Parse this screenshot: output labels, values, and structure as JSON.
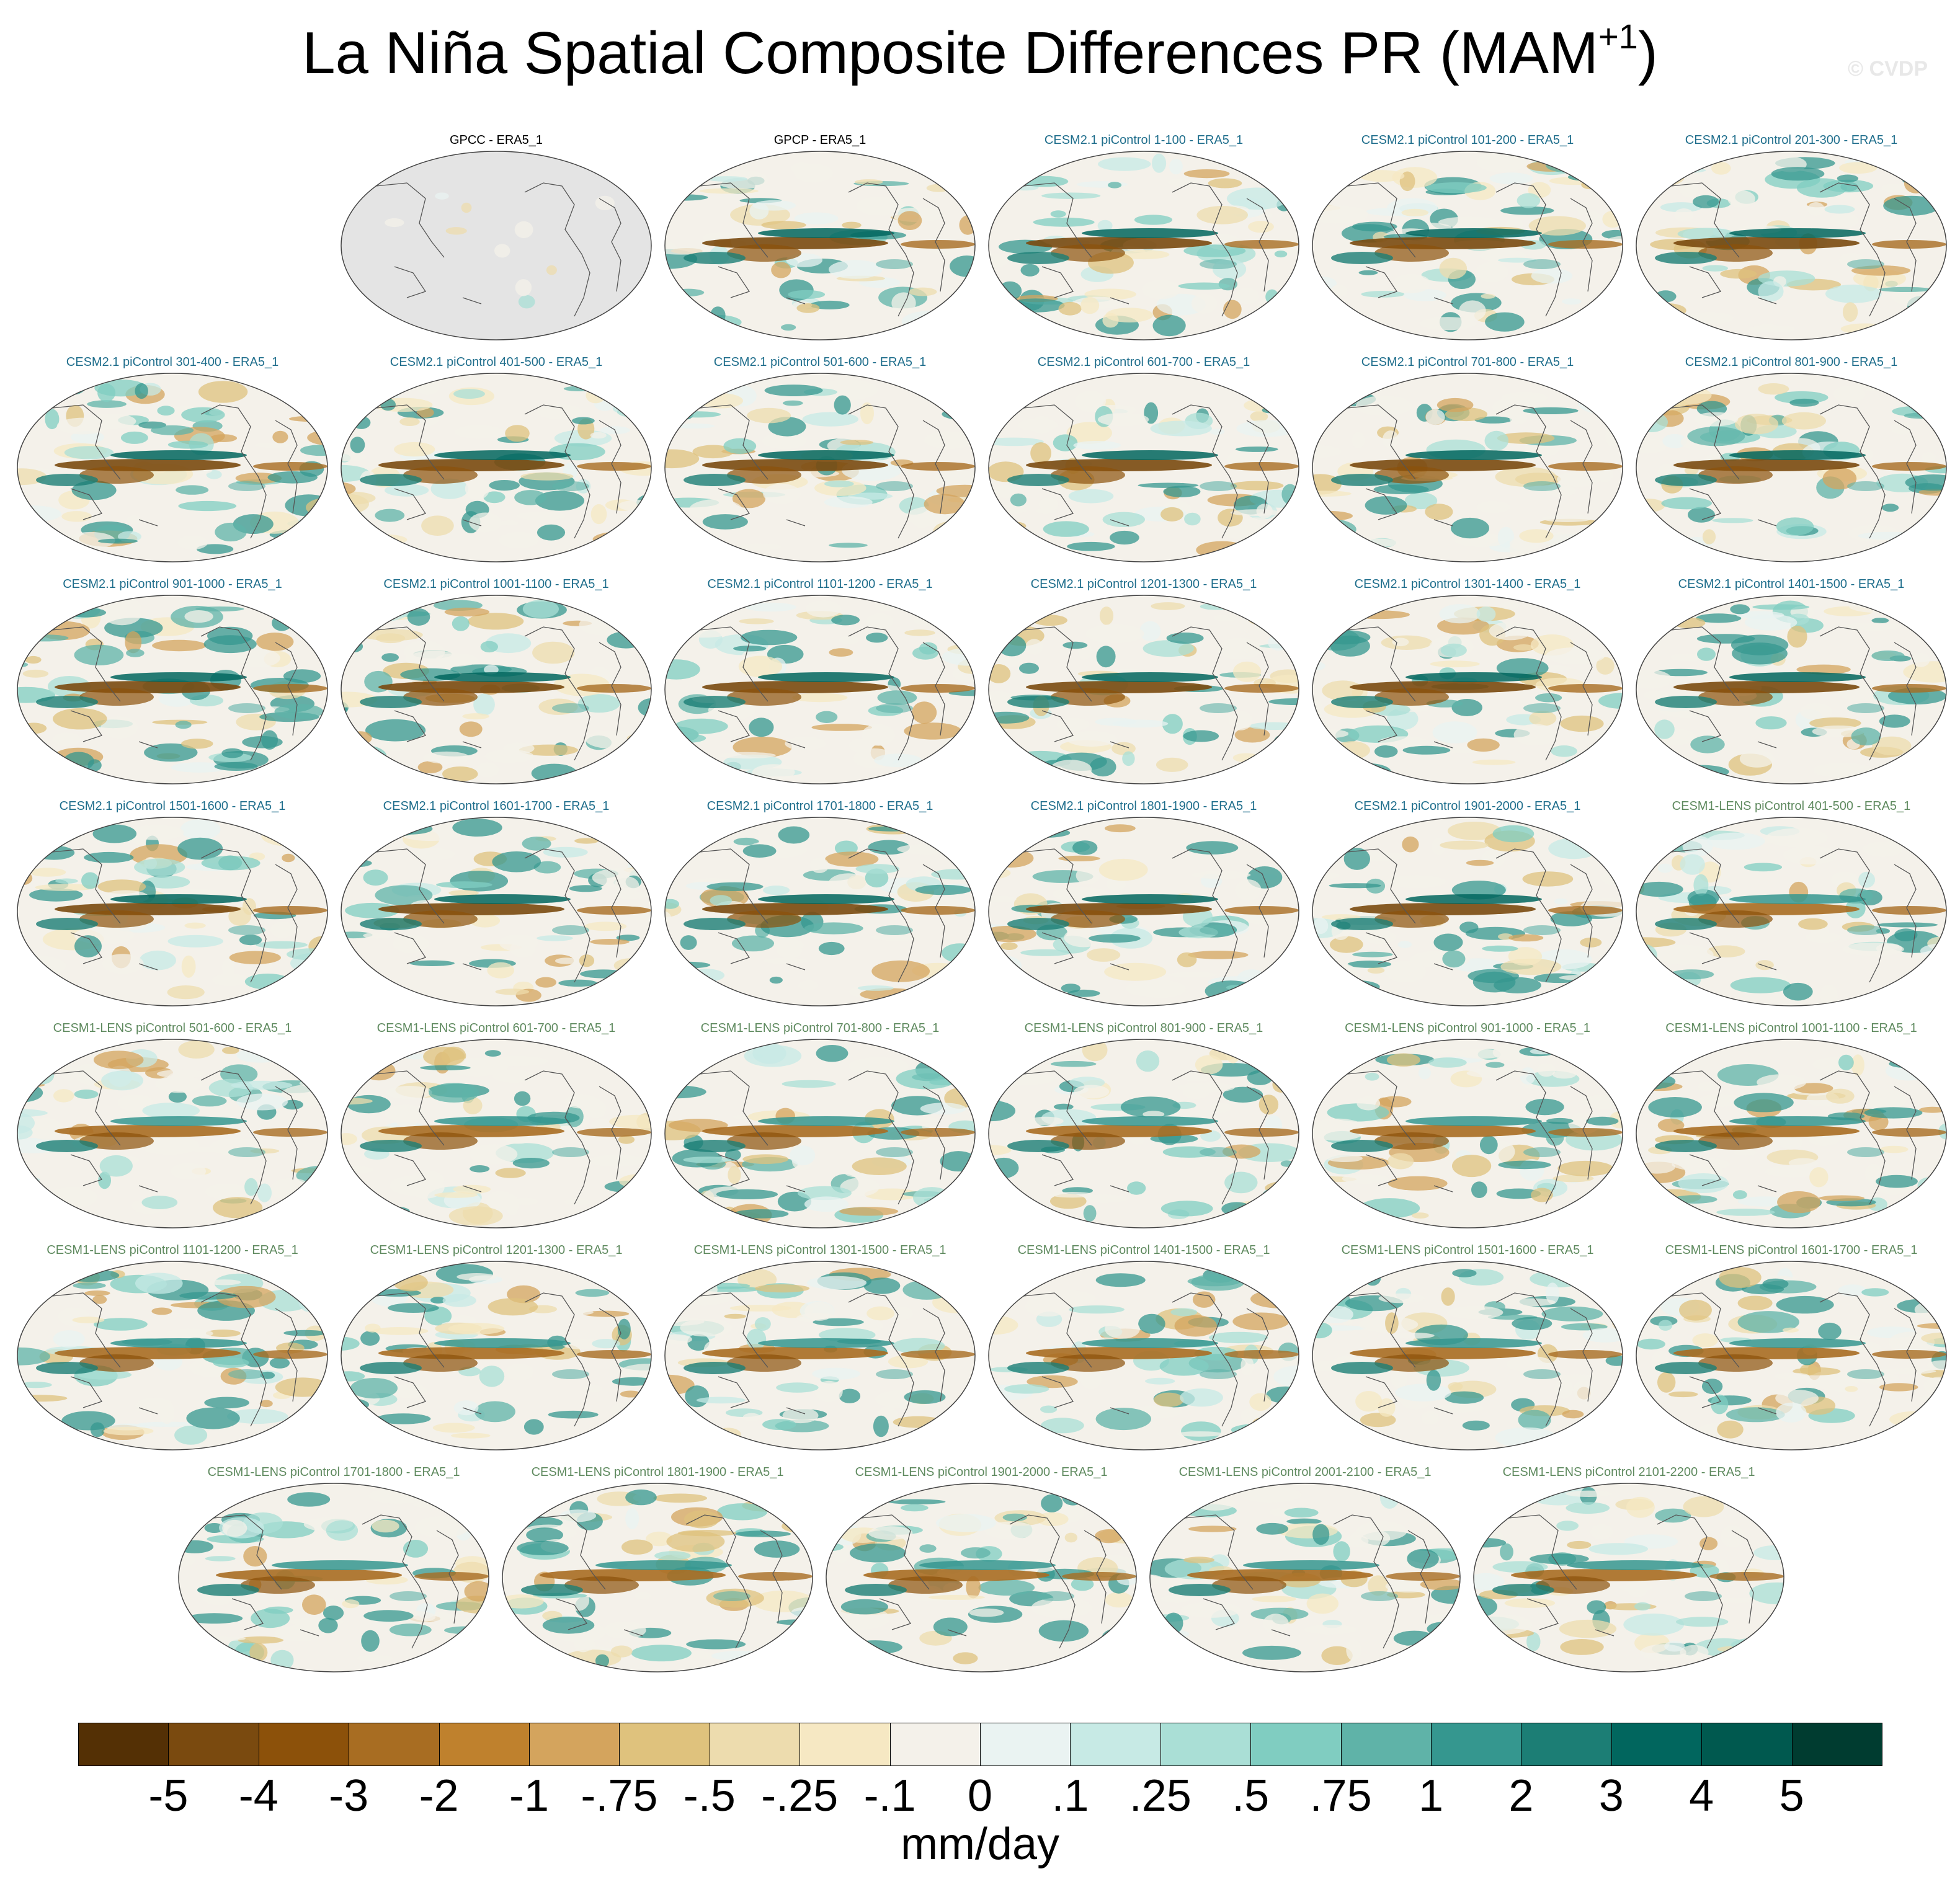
{
  "chart_data": {
    "type": "heatmap",
    "title": "La Niña Spatial Composite Differences PR (MAM",
    "title_superscript": "+1",
    "title_close": ")",
    "watermark": "© CVDP",
    "projection": "global map (Robinson-like)",
    "units": "mm/day",
    "colorbar": {
      "levels": [
        "-5",
        "-4",
        "-3",
        "-2",
        "-1",
        "-.75",
        "-.5",
        "-.25",
        "-.1",
        "0",
        ".1",
        ".25",
        ".5",
        ".75",
        "1",
        "2",
        "3",
        "4",
        "5"
      ],
      "colors": [
        "#543005",
        "#7a4a0f",
        "#8c510a",
        "#a86d22",
        "#bf812d",
        "#d4a45d",
        "#dfc27d",
        "#eddcae",
        "#f6e8c3",
        "#f4f1ea",
        "#eaf3f2",
        "#c7eae5",
        "#aadfd6",
        "#80cdc1",
        "#5fb3a8",
        "#35978f",
        "#1c7e75",
        "#01665e",
        "#00594f",
        "#003c30"
      ]
    },
    "panels": [
      {
        "row": 0,
        "col": 1,
        "title": "GPCC - ERA5_1",
        "group": "obs"
      },
      {
        "row": 0,
        "col": 2,
        "title": "GPCP - ERA5_1",
        "group": "obs"
      },
      {
        "row": 0,
        "col": 3,
        "title": "CESM2.1 piControl 1-100 - ERA5_1",
        "group": "cesm2"
      },
      {
        "row": 0,
        "col": 4,
        "title": "CESM2.1 piControl 101-200 - ERA5_1",
        "group": "cesm2"
      },
      {
        "row": 0,
        "col": 5,
        "title": "CESM2.1 piControl 201-300 - ERA5_1",
        "group": "cesm2"
      },
      {
        "row": 1,
        "col": 0,
        "title": "CESM2.1 piControl 301-400 - ERA5_1",
        "group": "cesm2"
      },
      {
        "row": 1,
        "col": 1,
        "title": "CESM2.1 piControl 401-500 - ERA5_1",
        "group": "cesm2"
      },
      {
        "row": 1,
        "col": 2,
        "title": "CESM2.1 piControl 501-600 - ERA5_1",
        "group": "cesm2"
      },
      {
        "row": 1,
        "col": 3,
        "title": "CESM2.1 piControl 601-700 - ERA5_1",
        "group": "cesm2"
      },
      {
        "row": 1,
        "col": 4,
        "title": "CESM2.1 piControl 701-800 - ERA5_1",
        "group": "cesm2"
      },
      {
        "row": 1,
        "col": 5,
        "title": "CESM2.1 piControl 801-900 - ERA5_1",
        "group": "cesm2"
      },
      {
        "row": 2,
        "col": 0,
        "title": "CESM2.1 piControl 901-1000 - ERA5_1",
        "group": "cesm2"
      },
      {
        "row": 2,
        "col": 1,
        "title": "CESM2.1 piControl 1001-1100 - ERA5_1",
        "group": "cesm2"
      },
      {
        "row": 2,
        "col": 2,
        "title": "CESM2.1 piControl 1101-1200 - ERA5_1",
        "group": "cesm2"
      },
      {
        "row": 2,
        "col": 3,
        "title": "CESM2.1 piControl 1201-1300 - ERA5_1",
        "group": "cesm2"
      },
      {
        "row": 2,
        "col": 4,
        "title": "CESM2.1 piControl 1301-1400 - ERA5_1",
        "group": "cesm2"
      },
      {
        "row": 2,
        "col": 5,
        "title": "CESM2.1 piControl 1401-1500 - ERA5_1",
        "group": "cesm2"
      },
      {
        "row": 3,
        "col": 0,
        "title": "CESM2.1 piControl 1501-1600 - ERA5_1",
        "group": "cesm2"
      },
      {
        "row": 3,
        "col": 1,
        "title": "CESM2.1 piControl 1601-1700 - ERA5_1",
        "group": "cesm2"
      },
      {
        "row": 3,
        "col": 2,
        "title": "CESM2.1 piControl 1701-1800 - ERA5_1",
        "group": "cesm2"
      },
      {
        "row": 3,
        "col": 3,
        "title": "CESM2.1 piControl 1801-1900 - ERA5_1",
        "group": "cesm2"
      },
      {
        "row": 3,
        "col": 4,
        "title": "CESM2.1 piControl 1901-2000 - ERA5_1",
        "group": "cesm2"
      },
      {
        "row": 3,
        "col": 5,
        "title": "CESM1-LENS piControl 401-500 - ERA5_1",
        "group": "cesm1"
      },
      {
        "row": 4,
        "col": 0,
        "title": "CESM1-LENS piControl 501-600 - ERA5_1",
        "group": "cesm1"
      },
      {
        "row": 4,
        "col": 1,
        "title": "CESM1-LENS piControl 601-700 - ERA5_1",
        "group": "cesm1"
      },
      {
        "row": 4,
        "col": 2,
        "title": "CESM1-LENS piControl 701-800 - ERA5_1",
        "group": "cesm1"
      },
      {
        "row": 4,
        "col": 3,
        "title": "CESM1-LENS piControl 801-900 - ERA5_1",
        "group": "cesm1"
      },
      {
        "row": 4,
        "col": 4,
        "title": "CESM1-LENS piControl 901-1000 - ERA5_1",
        "group": "cesm1"
      },
      {
        "row": 4,
        "col": 5,
        "title": "CESM1-LENS piControl 1001-1100 - ERA5_1",
        "group": "cesm1"
      },
      {
        "row": 5,
        "col": 0,
        "title": "CESM1-LENS piControl 1101-1200 - ERA5_1",
        "group": "cesm1"
      },
      {
        "row": 5,
        "col": 1,
        "title": "CESM1-LENS piControl 1201-1300 - ERA5_1",
        "group": "cesm1"
      },
      {
        "row": 5,
        "col": 2,
        "title": "CESM1-LENS piControl 1301-1500 - ERA5_1",
        "group": "cesm1"
      },
      {
        "row": 5,
        "col": 3,
        "title": "CESM1-LENS piControl 1401-1500 - ERA5_1",
        "group": "cesm1"
      },
      {
        "row": 5,
        "col": 4,
        "title": "CESM1-LENS piControl 1501-1600 - ERA5_1",
        "group": "cesm1"
      },
      {
        "row": 5,
        "col": 5,
        "title": "CESM1-LENS piControl 1601-1700 - ERA5_1",
        "group": "cesm1"
      },
      {
        "row": 6,
        "col": 0,
        "title": "CESM1-LENS piControl 1701-1800 - ERA5_1",
        "group": "cesm1"
      },
      {
        "row": 6,
        "col": 1,
        "title": "CESM1-LENS piControl 1801-1900 - ERA5_1",
        "group": "cesm1"
      },
      {
        "row": 6,
        "col": 2,
        "title": "CESM1-LENS piControl 1901-2000 - ERA5_1",
        "group": "cesm1"
      },
      {
        "row": 6,
        "col": 3,
        "title": "CESM1-LENS piControl 2001-2100 - ERA5_1",
        "group": "cesm1"
      },
      {
        "row": 6,
        "col": 4,
        "title": "CESM1-LENS piControl 2101-2200 - ERA5_1",
        "group": "cesm1"
      }
    ],
    "group_title_colors": {
      "obs": "#000000",
      "cesm2": "#1f6e8c",
      "cesm1": "#5f8a5f"
    },
    "gpcc_missing_color": "#e4e4e4"
  }
}
